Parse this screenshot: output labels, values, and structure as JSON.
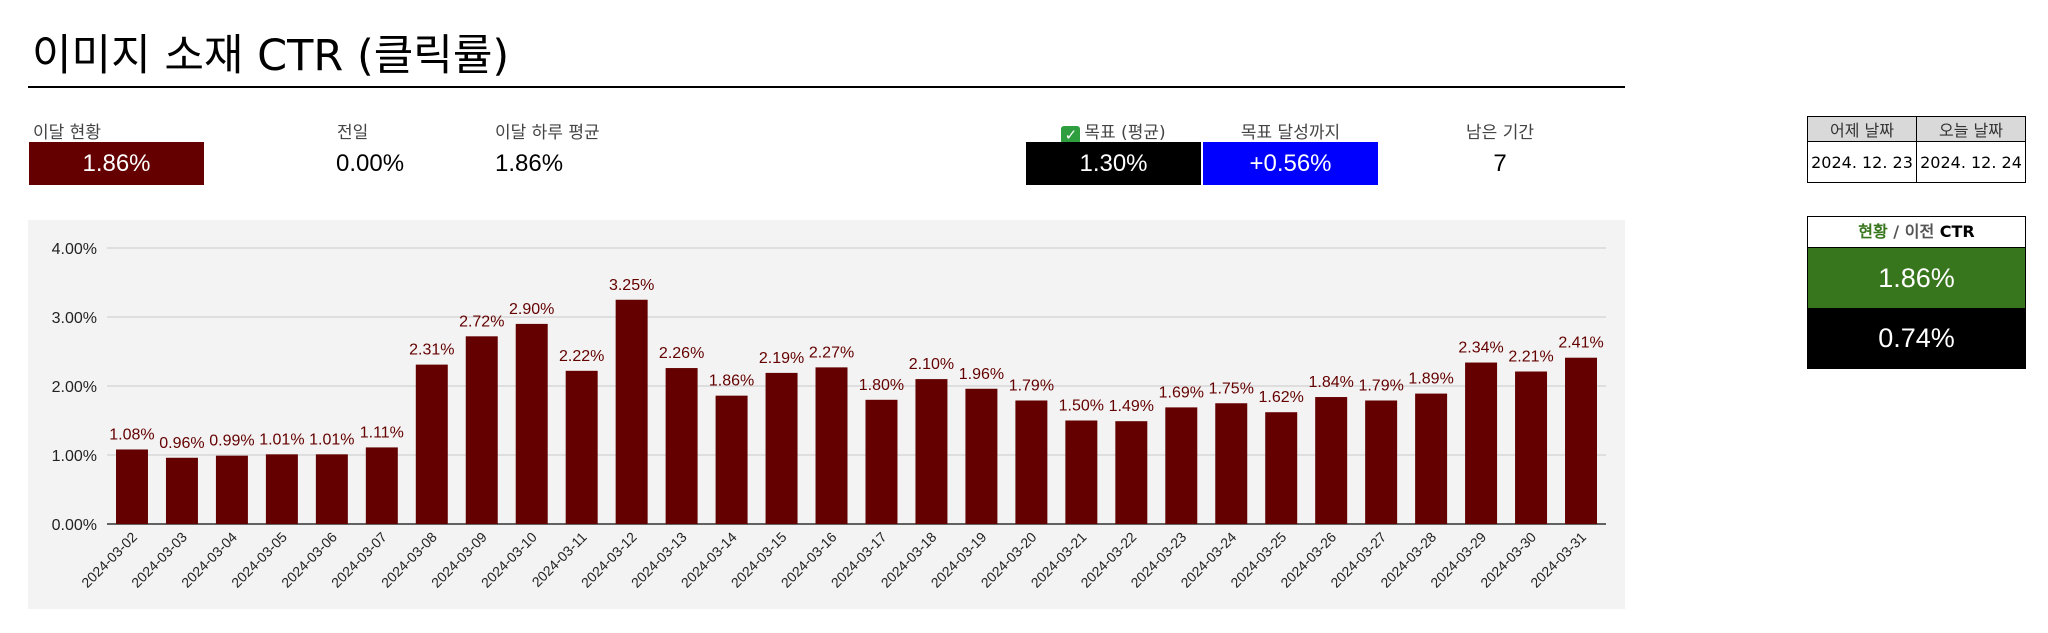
{
  "page": {
    "title": "이미지 소재 CTR (클릭률)"
  },
  "kpis": {
    "month_status": {
      "label": "이달 현황",
      "value": "1.86%"
    },
    "previous_day": {
      "label": "전일",
      "value": "0.00%"
    },
    "daily_average": {
      "label": "이달 하루 평균",
      "value": "1.86%"
    },
    "target": {
      "icon": "check-mark-icon",
      "label": "목표 (평균)",
      "value": "1.30%"
    },
    "to_target": {
      "label": "목표 달성까지",
      "value": "+0.56%"
    },
    "remaining": {
      "label": "남은 기간",
      "value": "7"
    }
  },
  "dates": {
    "yesterday_header": "어제 날짜",
    "today_header": "오늘 날짜",
    "yesterday": "2024. 12. 23",
    "today": "2024. 12. 24"
  },
  "status_panel": {
    "header_current": "현황",
    "header_sep": " / ",
    "header_prev": "이전",
    "header_metric": " CTR",
    "current": "1.86%",
    "previous": "0.74%"
  },
  "colors": {
    "bar": "#640000",
    "label": "#640000",
    "kpi_month_bg": "#640000",
    "target_bg": "#000000",
    "to_target_bg": "#0000ff",
    "status_current_bg": "#38761d",
    "status_prev_bg": "#000000",
    "status_current_text": "#38761d",
    "chart_bg": "#f3f3f3",
    "grid": "#c9c9c9"
  },
  "chart_data": {
    "type": "bar",
    "categories": [
      "2024-03-02",
      "2024-03-03",
      "2024-03-04",
      "2024-03-05",
      "2024-03-06",
      "2024-03-07",
      "2024-03-08",
      "2024-03-09",
      "2024-03-10",
      "2024-03-11",
      "2024-03-12",
      "2024-03-13",
      "2024-03-14",
      "2024-03-15",
      "2024-03-16",
      "2024-03-17",
      "2024-03-18",
      "2024-03-19",
      "2024-03-20",
      "2024-03-21",
      "2024-03-22",
      "2024-03-23",
      "2024-03-24",
      "2024-03-25",
      "2024-03-26",
      "2024-03-27",
      "2024-03-28",
      "2024-03-29",
      "2024-03-30",
      "2024-03-31"
    ],
    "values": [
      1.08,
      0.96,
      0.99,
      1.01,
      1.01,
      1.11,
      2.31,
      2.72,
      2.9,
      2.22,
      3.25,
      2.26,
      1.86,
      2.19,
      2.27,
      1.8,
      2.1,
      1.96,
      1.79,
      1.5,
      1.49,
      1.69,
      1.75,
      1.62,
      1.84,
      1.79,
      1.89,
      2.34,
      2.21,
      2.41
    ],
    "data_labels": [
      "1.08%",
      "0.96%",
      "0.99%",
      "1.01%",
      "1.01%",
      "1.11%",
      "2.31%",
      "2.72%",
      "2.90%",
      "2.22%",
      "3.25%",
      "2.26%",
      "1.86%",
      "2.19%",
      "2.27%",
      "1.80%",
      "2.10%",
      "1.96%",
      "1.79%",
      "1.50%",
      "1.49%",
      "1.69%",
      "1.75%",
      "1.62%",
      "1.84%",
      "1.79%",
      "1.89%",
      "2.34%",
      "2.21%",
      "2.41%"
    ],
    "y_ticks": [
      "0.00%",
      "1.00%",
      "2.00%",
      "3.00%",
      "4.00%"
    ],
    "y_tick_values": [
      0,
      1,
      2,
      3,
      4
    ],
    "ylim": [
      0,
      4
    ],
    "grid": true,
    "legend": "none"
  }
}
